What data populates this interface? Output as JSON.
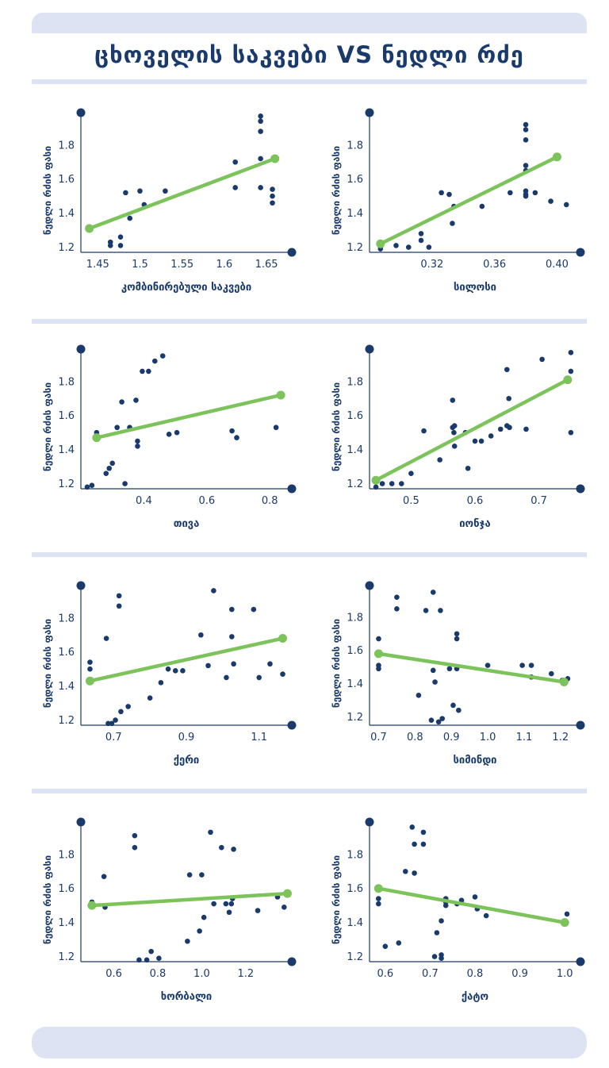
{
  "title": "ცხოველის საკვები VS ნედლი რძე",
  "colors": {
    "navy": "#1a3a6b",
    "green": "#7dc35b",
    "band": "#dde3f3"
  },
  "chart_data": [
    {
      "type": "scatter",
      "xlabel": "კომბინირებული საკვები",
      "ylabel": "ნედლი რძის ფასი",
      "xlim": [
        1.43,
        1.68
      ],
      "ylim": [
        1.17,
        1.99
      ],
      "xticks": [
        1.45,
        1.5,
        1.55,
        1.6,
        1.65
      ],
      "xticklabels": [
        "1.45",
        "1.5",
        "1.55",
        "1.6",
        "1.65"
      ],
      "yticks": [
        1.2,
        1.4,
        1.6,
        1.8
      ],
      "yticklabels": [
        "1.2",
        "1.4",
        "1.6",
        "1.8"
      ],
      "x": [
        1.44,
        1.465,
        1.465,
        1.477,
        1.477,
        1.483,
        1.488,
        1.5,
        1.505,
        1.53,
        1.613,
        1.613,
        1.643,
        1.643,
        1.643,
        1.643,
        1.643,
        1.657,
        1.657,
        1.657
      ],
      "y": [
        1.32,
        1.21,
        1.23,
        1.21,
        1.26,
        1.52,
        1.37,
        1.53,
        1.45,
        1.53,
        1.7,
        1.55,
        1.97,
        1.94,
        1.88,
        1.72,
        1.55,
        1.54,
        1.5,
        1.46
      ],
      "trend": {
        "x": [
          1.44,
          1.66
        ],
        "y": [
          1.31,
          1.72
        ]
      }
    },
    {
      "type": "scatter",
      "xlabel": "სილოსი",
      "ylabel": "ნედლი რძის ფასი",
      "xlim": [
        0.28,
        0.415
      ],
      "ylim": [
        1.17,
        1.99
      ],
      "xticks": [
        0.32,
        0.36,
        0.4
      ],
      "xticklabels": [
        "0.32",
        "0.36",
        "0.40"
      ],
      "yticks": [
        1.2,
        1.4,
        1.6,
        1.8
      ],
      "yticklabels": [
        "1.2",
        "1.4",
        "1.6",
        "1.8"
      ],
      "x": [
        0.287,
        0.297,
        0.305,
        0.313,
        0.313,
        0.318,
        0.326,
        0.331,
        0.333,
        0.334,
        0.352,
        0.37,
        0.38,
        0.38,
        0.38,
        0.38,
        0.38,
        0.38,
        0.38,
        0.38,
        0.386,
        0.396,
        0.406
      ],
      "y": [
        1.19,
        1.21,
        1.2,
        1.28,
        1.24,
        1.2,
        1.52,
        1.51,
        1.34,
        1.44,
        1.44,
        1.52,
        1.92,
        1.89,
        1.83,
        1.68,
        1.65,
        1.53,
        1.51,
        1.5,
        1.52,
        1.47,
        1.45
      ],
      "trend": {
        "x": [
          0.287,
          0.4
        ],
        "y": [
          1.22,
          1.73
        ]
      }
    },
    {
      "type": "scatter",
      "xlabel": "თივა",
      "ylabel": "ნედლი რძის ფასი",
      "xlim": [
        0.2,
        0.87
      ],
      "ylim": [
        1.17,
        1.99
      ],
      "xticks": [
        0.4,
        0.6,
        0.8
      ],
      "xticklabels": [
        "0.4",
        "0.6",
        "0.8"
      ],
      "yticks": [
        1.2,
        1.4,
        1.6,
        1.8
      ],
      "yticklabels": [
        "1.2",
        "1.4",
        "1.6",
        "1.8"
      ],
      "x": [
        0.22,
        0.235,
        0.25,
        0.25,
        0.28,
        0.29,
        0.3,
        0.315,
        0.33,
        0.34,
        0.355,
        0.375,
        0.38,
        0.38,
        0.395,
        0.415,
        0.435,
        0.46,
        0.48,
        0.505,
        0.68,
        0.695,
        0.82
      ],
      "y": [
        1.18,
        1.19,
        1.5,
        1.47,
        1.26,
        1.29,
        1.32,
        1.53,
        1.68,
        1.2,
        1.53,
        1.69,
        1.45,
        1.42,
        1.86,
        1.86,
        1.92,
        1.95,
        1.49,
        1.5,
        1.51,
        1.47,
        1.53
      ],
      "trend": {
        "x": [
          0.25,
          0.835
        ],
        "y": [
          1.47,
          1.72
        ]
      }
    },
    {
      "type": "scatter",
      "xlabel": "იონჯა",
      "ylabel": "ნედლი რძის ფასი",
      "xlim": [
        0.435,
        0.765
      ],
      "ylim": [
        1.17,
        1.99
      ],
      "xticks": [
        0.5,
        0.6,
        0.7
      ],
      "xticklabels": [
        "0.5",
        "0.6",
        "0.7"
      ],
      "yticks": [
        1.2,
        1.4,
        1.6,
        1.8
      ],
      "yticklabels": [
        "1.2",
        "1.4",
        "1.6",
        "1.8"
      ],
      "x": [
        0.445,
        0.455,
        0.47,
        0.485,
        0.5,
        0.52,
        0.545,
        0.565,
        0.565,
        0.567,
        0.568,
        0.568,
        0.585,
        0.589,
        0.6,
        0.61,
        0.625,
        0.64,
        0.65,
        0.653,
        0.654,
        0.65,
        0.68,
        0.705,
        0.75,
        0.75,
        0.75
      ],
      "y": [
        1.18,
        1.2,
        1.2,
        1.2,
        1.26,
        1.51,
        1.34,
        1.69,
        1.53,
        1.5,
        1.42,
        1.54,
        1.5,
        1.29,
        1.45,
        1.45,
        1.48,
        1.52,
        1.87,
        1.7,
        1.53,
        1.54,
        1.52,
        1.93,
        1.97,
        1.86,
        1.5
      ],
      "trend": {
        "x": [
          0.445,
          0.745
        ],
        "y": [
          1.22,
          1.81
        ]
      }
    },
    {
      "type": "scatter",
      "xlabel": "ქერი",
      "ylabel": "ნედლი რძის ფასი",
      "xlim": [
        0.61,
        1.19
      ],
      "ylim": [
        1.17,
        1.99
      ],
      "xticks": [
        0.7,
        0.9,
        1.1
      ],
      "xticklabels": [
        "0.7",
        "0.9",
        "1.1"
      ],
      "yticks": [
        1.2,
        1.4,
        1.6,
        1.8
      ],
      "yticklabels": [
        "1.2",
        "1.4",
        "1.6",
        "1.8"
      ],
      "x": [
        0.635,
        0.635,
        0.68,
        0.685,
        0.695,
        0.705,
        0.715,
        0.715,
        0.72,
        0.74,
        0.8,
        0.83,
        0.85,
        0.87,
        0.89,
        0.94,
        0.96,
        0.975,
        1.01,
        1.025,
        1.025,
        1.03,
        1.085,
        1.1,
        1.13,
        1.165
      ],
      "y": [
        1.54,
        1.5,
        1.68,
        1.18,
        1.18,
        1.2,
        1.93,
        1.87,
        1.25,
        1.28,
        1.33,
        1.42,
        1.5,
        1.49,
        1.49,
        1.7,
        1.52,
        1.96,
        1.45,
        1.85,
        1.69,
        1.53,
        1.85,
        1.45,
        1.53,
        1.47
      ],
      "trend": {
        "x": [
          0.635,
          1.165
        ],
        "y": [
          1.43,
          1.68
        ]
      }
    },
    {
      "type": "scatter",
      "xlabel": "სიმინდი",
      "ylabel": "ნედლი რძის ფასი",
      "xlim": [
        0.675,
        1.255
      ],
      "ylim": [
        1.15,
        1.99
      ],
      "xticks": [
        0.7,
        0.8,
        0.9,
        1.0,
        1.1,
        1.2
      ],
      "xticklabels": [
        "0.7",
        "0.8",
        "0.9",
        "1.0",
        "1.1",
        "1.2"
      ],
      "yticks": [
        1.2,
        1.4,
        1.6,
        1.8
      ],
      "yticklabels": [
        "1.2",
        "1.4",
        "1.6",
        "1.8"
      ],
      "x": [
        0.7,
        0.7,
        0.7,
        0.75,
        0.75,
        0.81,
        0.83,
        0.845,
        0.85,
        0.85,
        0.855,
        0.865,
        0.87,
        0.875,
        0.895,
        0.905,
        0.915,
        0.915,
        0.915,
        0.92,
        1.0,
        1.095,
        1.12,
        1.12,
        1.175,
        1.205,
        1.22
      ],
      "y": [
        1.67,
        1.51,
        1.49,
        1.92,
        1.85,
        1.33,
        1.84,
        1.18,
        1.95,
        1.48,
        1.41,
        1.17,
        1.84,
        1.19,
        1.49,
        1.27,
        1.7,
        1.67,
        1.49,
        1.24,
        1.51,
        1.51,
        1.51,
        1.44,
        1.46,
        1.42,
        1.43
      ],
      "trend": {
        "x": [
          0.7,
          1.21
        ],
        "y": [
          1.58,
          1.41
        ]
      }
    },
    {
      "type": "scatter",
      "xlabel": "ხორბალი",
      "ylabel": "ნედლი რძის ფასი",
      "xlim": [
        0.45,
        1.41
      ],
      "ylim": [
        1.17,
        1.99
      ],
      "xticks": [
        0.6,
        0.8,
        1.0,
        1.2
      ],
      "xticklabels": [
        "0.6",
        "0.8",
        "1.0",
        "1.2"
      ],
      "yticks": [
        1.2,
        1.4,
        1.6,
        1.8
      ],
      "yticklabels": [
        "1.2",
        "1.4",
        "1.6",
        "1.8"
      ],
      "x": [
        0.5,
        0.5,
        0.555,
        0.56,
        0.695,
        0.695,
        0.715,
        0.75,
        0.77,
        0.805,
        0.935,
        0.945,
        0.99,
        1.0,
        1.01,
        1.04,
        1.055,
        1.09,
        1.11,
        1.125,
        1.135,
        1.14,
        1.145,
        1.255,
        1.345,
        1.375
      ],
      "y": [
        1.52,
        1.5,
        1.67,
        1.49,
        1.91,
        1.84,
        1.18,
        1.18,
        1.23,
        1.19,
        1.29,
        1.68,
        1.35,
        1.68,
        1.43,
        1.93,
        1.51,
        1.84,
        1.51,
        1.46,
        1.51,
        1.54,
        1.83,
        1.47,
        1.55,
        1.49
      ],
      "trend": {
        "x": [
          0.5,
          1.39
        ],
        "y": [
          1.5,
          1.57
        ]
      }
    },
    {
      "type": "scatter",
      "xlabel": "ქატო",
      "ylabel": "ნედლი რძის ფასი",
      "xlim": [
        0.565,
        1.035
      ],
      "ylim": [
        1.17,
        1.99
      ],
      "xticks": [
        0.6,
        0.7,
        0.8,
        0.9,
        1.0
      ],
      "xticklabels": [
        "0.6",
        "0.7",
        "0.8",
        "0.9",
        "1.0"
      ],
      "yticks": [
        1.2,
        1.4,
        1.6,
        1.8
      ],
      "yticklabels": [
        "1.2",
        "1.4",
        "1.6",
        "1.8"
      ],
      "x": [
        0.585,
        0.585,
        0.6,
        0.63,
        0.645,
        0.66,
        0.665,
        0.665,
        0.685,
        0.685,
        0.71,
        0.715,
        0.725,
        0.725,
        0.725,
        0.735,
        0.735,
        0.735,
        0.76,
        0.77,
        0.8,
        0.805,
        0.825,
        1.005
      ],
      "y": [
        1.54,
        1.51,
        1.26,
        1.28,
        1.7,
        1.96,
        1.86,
        1.69,
        1.93,
        1.86,
        1.2,
        1.34,
        1.21,
        1.19,
        1.41,
        1.54,
        1.52,
        1.5,
        1.51,
        1.53,
        1.55,
        1.48,
        1.44,
        1.45
      ],
      "trend": {
        "x": [
          0.585,
          1.0
        ],
        "y": [
          1.6,
          1.4
        ]
      }
    }
  ]
}
